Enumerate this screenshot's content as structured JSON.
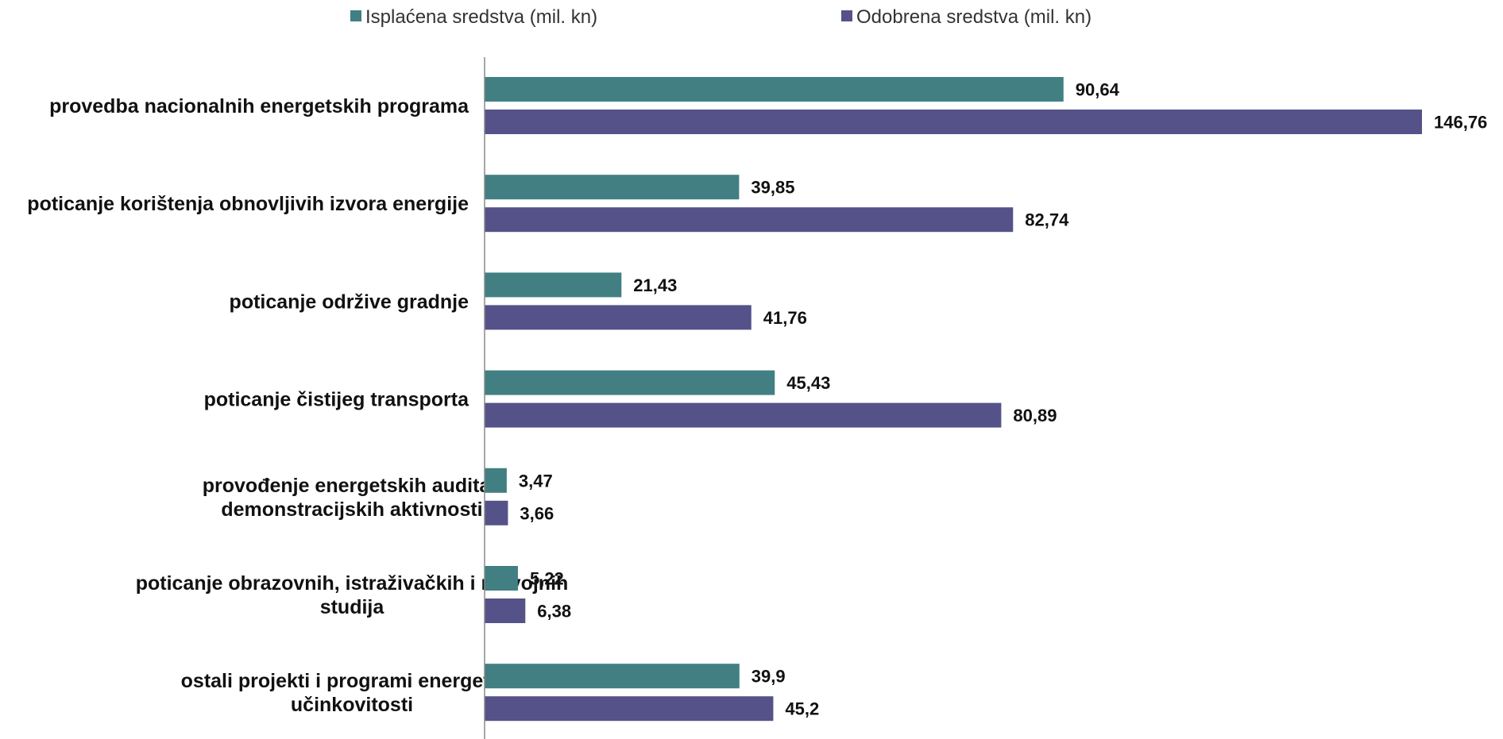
{
  "chart_data": {
    "type": "bar",
    "orientation": "horizontal",
    "categories": [
      [
        "provedba nacionalnih energetskih programa"
      ],
      [
        "poticanje korištenja obnovljivih izvora energije"
      ],
      [
        "poticanje održive gradnje"
      ],
      [
        "poticanje čistijeg transporta"
      ],
      [
        "provođenje energetskih audita i",
        "demonstracijskih aktivnosti"
      ],
      [
        "poticanje obrazovnih, istraživačkih i razvojnih",
        "studija"
      ],
      [
        "ostali projekti i programi energetske",
        "učinkovitosti"
      ]
    ],
    "series": [
      {
        "name": "Isplaćena sredstva  (mil. kn)",
        "color": "#417F82",
        "values": [
          90.64,
          39.85,
          21.43,
          45.43,
          3.47,
          5.22,
          39.9
        ],
        "labels": [
          "90,64",
          "39,85",
          "21,43",
          "45,43",
          "3,47",
          "5,22",
          "39,9"
        ]
      },
      {
        "name": "Odobrena sredstva  (mil. kn)",
        "color": "#545289",
        "values": [
          146.76,
          82.74,
          41.76,
          80.89,
          3.66,
          6.38,
          45.2
        ],
        "labels": [
          "146,76",
          "82,74",
          "41,76",
          "80,89",
          "3,66",
          "6,38",
          "45,2"
        ]
      }
    ],
    "xlim": [
      0,
      146.76
    ],
    "legend_position": "top",
    "grid": false,
    "axis_color": "#888888"
  }
}
